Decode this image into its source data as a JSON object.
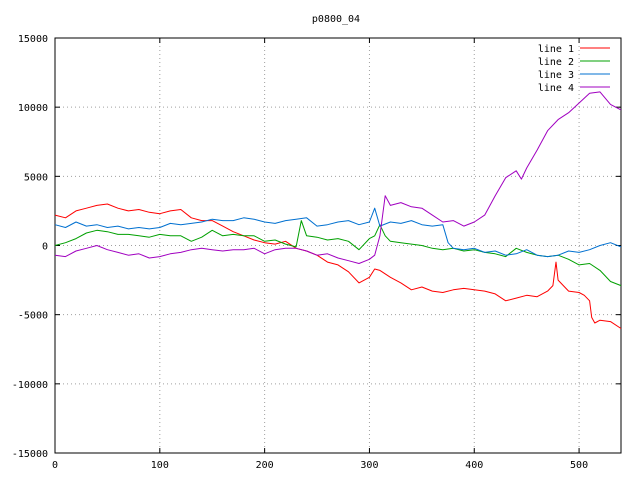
{
  "chart_data": {
    "type": "line",
    "title": "p0800_04",
    "xlabel": "",
    "ylabel": "",
    "xlim": [
      0,
      540
    ],
    "ylim": [
      -15000,
      15000
    ],
    "xticks": [
      0,
      100,
      200,
      300,
      400,
      500
    ],
    "yticks": [
      -15000,
      -10000,
      -5000,
      0,
      5000,
      10000,
      15000
    ],
    "grid": true,
    "legend_position": "top-right",
    "series": [
      {
        "name": "line 1",
        "color": "#ff0000",
        "points": [
          [
            0,
            2200
          ],
          [
            10,
            2000
          ],
          [
            20,
            2500
          ],
          [
            30,
            2700
          ],
          [
            40,
            2900
          ],
          [
            50,
            3000
          ],
          [
            60,
            2700
          ],
          [
            70,
            2500
          ],
          [
            80,
            2600
          ],
          [
            90,
            2400
          ],
          [
            100,
            2300
          ],
          [
            110,
            2500
          ],
          [
            120,
            2600
          ],
          [
            130,
            2000
          ],
          [
            140,
            1800
          ],
          [
            150,
            1800
          ],
          [
            160,
            1400
          ],
          [
            170,
            1000
          ],
          [
            180,
            700
          ],
          [
            190,
            400
          ],
          [
            200,
            200
          ],
          [
            210,
            100
          ],
          [
            220,
            300
          ],
          [
            230,
            -200
          ],
          [
            240,
            -400
          ],
          [
            250,
            -700
          ],
          [
            260,
            -1200
          ],
          [
            270,
            -1400
          ],
          [
            280,
            -1900
          ],
          [
            290,
            -2700
          ],
          [
            300,
            -2300
          ],
          [
            305,
            -1700
          ],
          [
            310,
            -1800
          ],
          [
            320,
            -2300
          ],
          [
            330,
            -2700
          ],
          [
            340,
            -3200
          ],
          [
            350,
            -3000
          ],
          [
            360,
            -3300
          ],
          [
            370,
            -3400
          ],
          [
            380,
            -3200
          ],
          [
            390,
            -3100
          ],
          [
            400,
            -3200
          ],
          [
            410,
            -3300
          ],
          [
            420,
            -3500
          ],
          [
            430,
            -4000
          ],
          [
            440,
            -3800
          ],
          [
            450,
            -3600
          ],
          [
            460,
            -3700
          ],
          [
            470,
            -3300
          ],
          [
            475,
            -2900
          ],
          [
            478,
            -1200
          ],
          [
            480,
            -2500
          ],
          [
            490,
            -3300
          ],
          [
            500,
            -3400
          ],
          [
            505,
            -3600
          ],
          [
            510,
            -4000
          ],
          [
            512,
            -5200
          ],
          [
            515,
            -5600
          ],
          [
            520,
            -5400
          ],
          [
            530,
            -5500
          ],
          [
            540,
            -6000
          ]
        ]
      },
      {
        "name": "line 2",
        "color": "#00a000",
        "points": [
          [
            0,
            0
          ],
          [
            10,
            200
          ],
          [
            20,
            500
          ],
          [
            30,
            900
          ],
          [
            40,
            1100
          ],
          [
            50,
            1000
          ],
          [
            60,
            800
          ],
          [
            70,
            800
          ],
          [
            80,
            700
          ],
          [
            90,
            600
          ],
          [
            100,
            800
          ],
          [
            110,
            700
          ],
          [
            120,
            700
          ],
          [
            130,
            300
          ],
          [
            140,
            600
          ],
          [
            150,
            1100
          ],
          [
            160,
            700
          ],
          [
            170,
            800
          ],
          [
            180,
            700
          ],
          [
            190,
            700
          ],
          [
            200,
            300
          ],
          [
            210,
            400
          ],
          [
            220,
            100
          ],
          [
            230,
            -100
          ],
          [
            235,
            1800
          ],
          [
            240,
            700
          ],
          [
            250,
            600
          ],
          [
            260,
            400
          ],
          [
            270,
            500
          ],
          [
            280,
            300
          ],
          [
            290,
            -300
          ],
          [
            300,
            500
          ],
          [
            305,
            700
          ],
          [
            310,
            1500
          ],
          [
            315,
            700
          ],
          [
            320,
            300
          ],
          [
            330,
            200
          ],
          [
            340,
            100
          ],
          [
            350,
            0
          ],
          [
            360,
            -200
          ],
          [
            370,
            -300
          ],
          [
            380,
            -200
          ],
          [
            390,
            -400
          ],
          [
            400,
            -300
          ],
          [
            410,
            -500
          ],
          [
            420,
            -600
          ],
          [
            430,
            -800
          ],
          [
            440,
            -200
          ],
          [
            450,
            -500
          ],
          [
            460,
            -700
          ],
          [
            470,
            -800
          ],
          [
            480,
            -700
          ],
          [
            490,
            -1000
          ],
          [
            500,
            -1400
          ],
          [
            510,
            -1300
          ],
          [
            520,
            -1800
          ],
          [
            530,
            -2600
          ],
          [
            540,
            -2900
          ]
        ]
      },
      {
        "name": "line 3",
        "color": "#0070d0",
        "points": [
          [
            0,
            1500
          ],
          [
            10,
            1300
          ],
          [
            20,
            1700
          ],
          [
            30,
            1400
          ],
          [
            40,
            1500
          ],
          [
            50,
            1300
          ],
          [
            60,
            1400
          ],
          [
            70,
            1200
          ],
          [
            80,
            1300
          ],
          [
            90,
            1200
          ],
          [
            100,
            1300
          ],
          [
            110,
            1600
          ],
          [
            120,
            1500
          ],
          [
            130,
            1600
          ],
          [
            140,
            1700
          ],
          [
            150,
            1900
          ],
          [
            160,
            1800
          ],
          [
            170,
            1800
          ],
          [
            180,
            2000
          ],
          [
            190,
            1900
          ],
          [
            200,
            1700
          ],
          [
            210,
            1600
          ],
          [
            220,
            1800
          ],
          [
            230,
            1900
          ],
          [
            240,
            2000
          ],
          [
            250,
            1400
          ],
          [
            260,
            1500
          ],
          [
            270,
            1700
          ],
          [
            280,
            1800
          ],
          [
            290,
            1500
          ],
          [
            300,
            1700
          ],
          [
            305,
            2700
          ],
          [
            310,
            1400
          ],
          [
            320,
            1700
          ],
          [
            330,
            1600
          ],
          [
            340,
            1800
          ],
          [
            350,
            1500
          ],
          [
            360,
            1400
          ],
          [
            370,
            1500
          ],
          [
            375,
            200
          ],
          [
            380,
            -200
          ],
          [
            390,
            -300
          ],
          [
            400,
            -200
          ],
          [
            410,
            -500
          ],
          [
            420,
            -400
          ],
          [
            430,
            -700
          ],
          [
            440,
            -600
          ],
          [
            450,
            -300
          ],
          [
            460,
            -700
          ],
          [
            470,
            -800
          ],
          [
            480,
            -700
          ],
          [
            490,
            -400
          ],
          [
            500,
            -500
          ],
          [
            510,
            -300
          ],
          [
            520,
            0
          ],
          [
            530,
            200
          ],
          [
            540,
            -100
          ]
        ]
      },
      {
        "name": "line 4",
        "color": "#a000c0",
        "points": [
          [
            0,
            -700
          ],
          [
            10,
            -800
          ],
          [
            20,
            -400
          ],
          [
            30,
            -200
          ],
          [
            40,
            0
          ],
          [
            50,
            -300
          ],
          [
            60,
            -500
          ],
          [
            70,
            -700
          ],
          [
            80,
            -600
          ],
          [
            90,
            -900
          ],
          [
            100,
            -800
          ],
          [
            110,
            -600
          ],
          [
            120,
            -500
          ],
          [
            130,
            -300
          ],
          [
            140,
            -200
          ],
          [
            150,
            -300
          ],
          [
            160,
            -400
          ],
          [
            170,
            -300
          ],
          [
            180,
            -300
          ],
          [
            190,
            -200
          ],
          [
            200,
            -600
          ],
          [
            210,
            -300
          ],
          [
            220,
            -200
          ],
          [
            230,
            -200
          ],
          [
            240,
            -400
          ],
          [
            250,
            -700
          ],
          [
            260,
            -600
          ],
          [
            270,
            -900
          ],
          [
            280,
            -1100
          ],
          [
            290,
            -1300
          ],
          [
            300,
            -1000
          ],
          [
            305,
            -700
          ],
          [
            310,
            700
          ],
          [
            315,
            3600
          ],
          [
            320,
            2900
          ],
          [
            330,
            3100
          ],
          [
            340,
            2800
          ],
          [
            350,
            2700
          ],
          [
            360,
            2200
          ],
          [
            370,
            1700
          ],
          [
            380,
            1800
          ],
          [
            390,
            1400
          ],
          [
            400,
            1700
          ],
          [
            410,
            2200
          ],
          [
            420,
            3600
          ],
          [
            430,
            4900
          ],
          [
            440,
            5400
          ],
          [
            445,
            4800
          ],
          [
            450,
            5600
          ],
          [
            460,
            6900
          ],
          [
            470,
            8300
          ],
          [
            480,
            9100
          ],
          [
            490,
            9600
          ],
          [
            500,
            10300
          ],
          [
            510,
            11000
          ],
          [
            520,
            11100
          ],
          [
            530,
            10200
          ],
          [
            540,
            9800
          ]
        ]
      }
    ]
  }
}
